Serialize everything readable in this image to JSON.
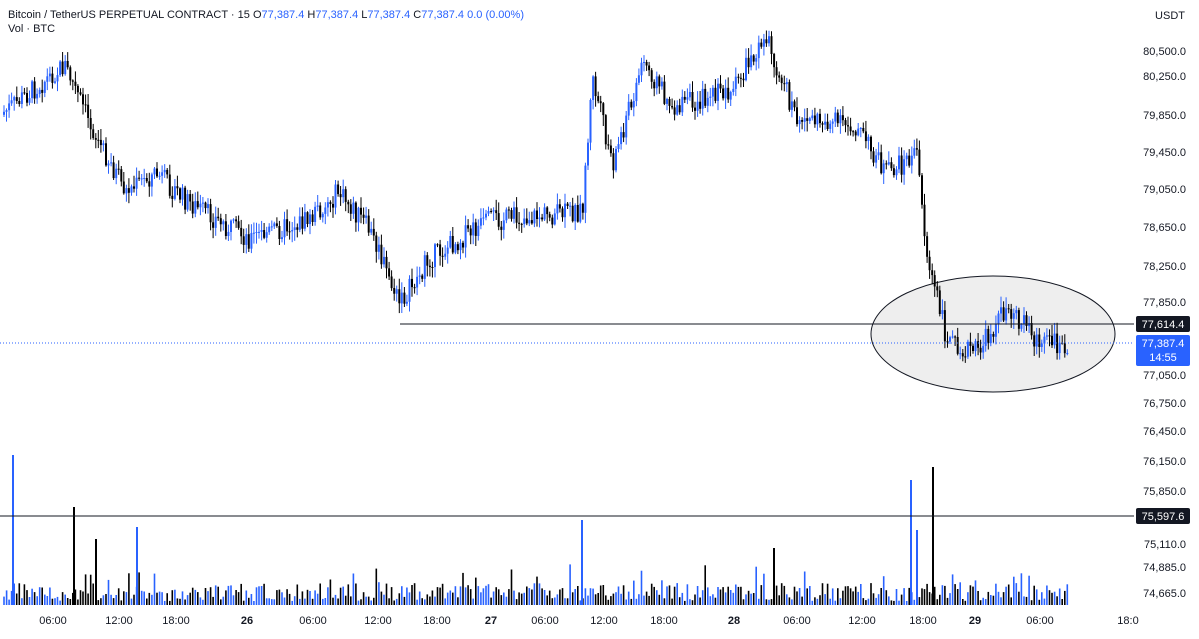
{
  "legend": {
    "symbol": "Bitcoin / TetherUS PERPETUAL CONTRACT",
    "interval": "15",
    "open_label": "O",
    "open": "77,387.4",
    "high_label": "H",
    "high": "77,387.4",
    "low_label": "L",
    "low": "77,387.4",
    "close_label": "C",
    "close": "77,387.4",
    "change": "0.0 (0.00%)",
    "volume_label": "Vol · BTC"
  },
  "price_axis": {
    "unit": "USDT",
    "ticks": [
      "80,500.0",
      "80,250.0",
      "79,850.0",
      "79,450.0",
      "79,050.0",
      "78,650.0",
      "78,250.0",
      "77,850.0",
      "77,050.0",
      "76,750.0",
      "76,450.0",
      "76,150.0",
      "75,850.0",
      "75,110.0",
      "74,885.0",
      "74,665.0"
    ],
    "line_label": "77,614.4",
    "current_price": "77,387.4",
    "countdown": "14:55",
    "volume_line_label": "75,597.6"
  },
  "time_axis": {
    "ticks": [
      "06:00",
      "12:00",
      "18:00",
      "26",
      "06:00",
      "12:00",
      "18:00",
      "27",
      "06:00",
      "12:00",
      "18:00",
      "28",
      "06:00",
      "12:00",
      "18:00",
      "29",
      "06:00",
      "18:0"
    ]
  },
  "colors": {
    "up": "#2962ff",
    "down": "#000000",
    "current_price": "#2962ff",
    "line": "#131722",
    "ellipse_fill": "#eeeeee"
  },
  "chart_data": {
    "type": "candlestick",
    "symbol": "Bitcoin / TetherUS PERPETUAL CONTRACT",
    "interval": "15",
    "y_unit": "USDT",
    "ylim": [
      74600,
      80900
    ],
    "horizontal_line": 77614.4,
    "volume_reference_line": 75597.6,
    "current_price": 77387.4,
    "price_path": [
      {
        "time": "25 00:00",
        "price": 79850
      },
      {
        "time": "25 06:00",
        "price": 80350
      },
      {
        "time": "25 09:00",
        "price": 79600
      },
      {
        "time": "25 12:00",
        "price": 79000
      },
      {
        "time": "25 15:00",
        "price": 79200
      },
      {
        "time": "25 18:00",
        "price": 78900
      },
      {
        "time": "26 00:00",
        "price": 78500
      },
      {
        "time": "26 06:00",
        "price": 78700
      },
      {
        "time": "26 09:00",
        "price": 79000
      },
      {
        "time": "26 12:00",
        "price": 78600
      },
      {
        "time": "26 15:00",
        "price": 77800
      },
      {
        "time": "26 18:00",
        "price": 78300
      },
      {
        "time": "27 00:00",
        "price": 78700
      },
      {
        "time": "27 06:00",
        "price": 78750
      },
      {
        "time": "27 09:00",
        "price": 78800
      },
      {
        "time": "27 10:00",
        "price": 80200
      },
      {
        "time": "27 12:00",
        "price": 79300
      },
      {
        "time": "27 15:00",
        "price": 80400
      },
      {
        "time": "27 18:00",
        "price": 79900
      },
      {
        "time": "28 00:00",
        "price": 80100
      },
      {
        "time": "28 03:00",
        "price": 80700
      },
      {
        "time": "28 06:00",
        "price": 79800
      },
      {
        "time": "28 12:00",
        "price": 79700
      },
      {
        "time": "28 15:00",
        "price": 79200
      },
      {
        "time": "28 18:00",
        "price": 79400
      },
      {
        "time": "28 19:00",
        "price": 78300
      },
      {
        "time": "28 21:00",
        "price": 77400
      },
      {
        "time": "29 00:00",
        "price": 77300
      },
      {
        "time": "29 03:00",
        "price": 77800
      },
      {
        "time": "29 06:00",
        "price": 77387.4
      }
    ]
  }
}
